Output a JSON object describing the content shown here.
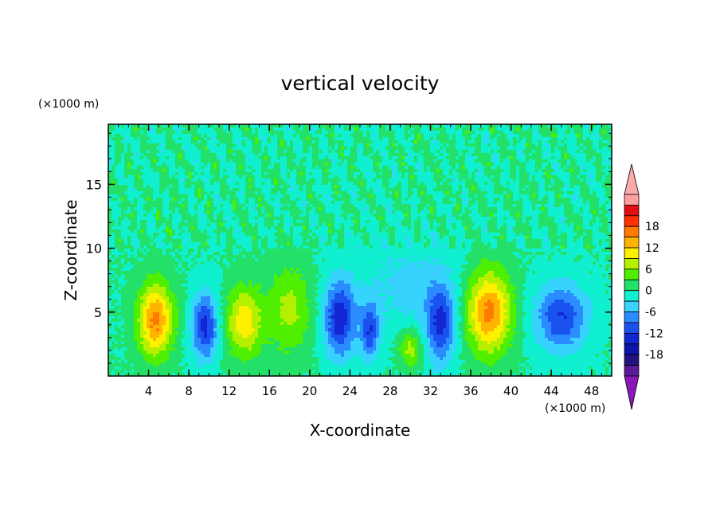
{
  "chart_data": {
    "type": "heatmap",
    "title": "vertical velocity",
    "xlabel": "X-coordinate",
    "ylabel": "Z-coordinate",
    "x_units": "(×1000 m)",
    "y_units": "(×1000 m)",
    "xlim": [
      0,
      50
    ],
    "ylim": [
      0,
      19.7
    ],
    "x_ticks": [
      4,
      8,
      12,
      16,
      20,
      24,
      28,
      32,
      36,
      40,
      44,
      48
    ],
    "y_ticks": [
      5,
      10,
      15
    ],
    "colorbar": {
      "levels": [
        -21,
        -18,
        -15,
        -12,
        -9,
        -6,
        -3,
        0,
        3,
        6,
        9,
        12,
        15,
        18,
        21
      ],
      "labels": [
        -18,
        -12,
        -6,
        0,
        6,
        12,
        18
      ],
      "colors": [
        "#5a1a9a",
        "#24127e",
        "#0a14a8",
        "#1226d2",
        "#1a52f0",
        "#2a8cff",
        "#38d2ff",
        "#10f0d0",
        "#22e068",
        "#50ee00",
        "#b4f000",
        "#fff000",
        "#ffb400",
        "#ff7a00",
        "#ff3000",
        "#e01010",
        "#ffa0a0"
      ],
      "under_color": "#8a18b8",
      "over_color": "#ffaaaa"
    },
    "features": [
      {
        "x": 4.7,
        "z": 4.4,
        "value": 16,
        "sx": 1.7,
        "sz": 2.8
      },
      {
        "x": 9.6,
        "z": 3.9,
        "value": -13,
        "sx": 1.3,
        "sz": 2.6
      },
      {
        "x": 13.5,
        "z": 4.2,
        "value": 11,
        "sx": 1.8,
        "sz": 2.7
      },
      {
        "x": 18.0,
        "z": 5.2,
        "value": 7,
        "sx": 2.2,
        "sz": 3.4
      },
      {
        "x": 23.0,
        "z": 4.5,
        "value": -14,
        "sx": 1.6,
        "sz": 3.0
      },
      {
        "x": 26.0,
        "z": 3.5,
        "value": -11,
        "sx": 0.9,
        "sz": 2.3
      },
      {
        "x": 30.0,
        "z": 2.2,
        "value": 8,
        "sx": 1.2,
        "sz": 1.4
      },
      {
        "x": 33.0,
        "z": 4.0,
        "value": -12,
        "sx": 1.4,
        "sz": 3.0
      },
      {
        "x": 37.8,
        "z": 5.0,
        "value": 16,
        "sx": 2.2,
        "sz": 3.2
      },
      {
        "x": 45.0,
        "z": 4.6,
        "value": -12,
        "sx": 2.6,
        "sz": 2.6
      },
      {
        "x": 30.0,
        "z": 7.0,
        "value": -4,
        "sx": 5.0,
        "sz": 4.0
      }
    ],
    "background_value": 0,
    "upper_layer": {
      "z_from": 10,
      "z_to": 19.7,
      "value_range": [
        -3,
        3
      ]
    }
  }
}
